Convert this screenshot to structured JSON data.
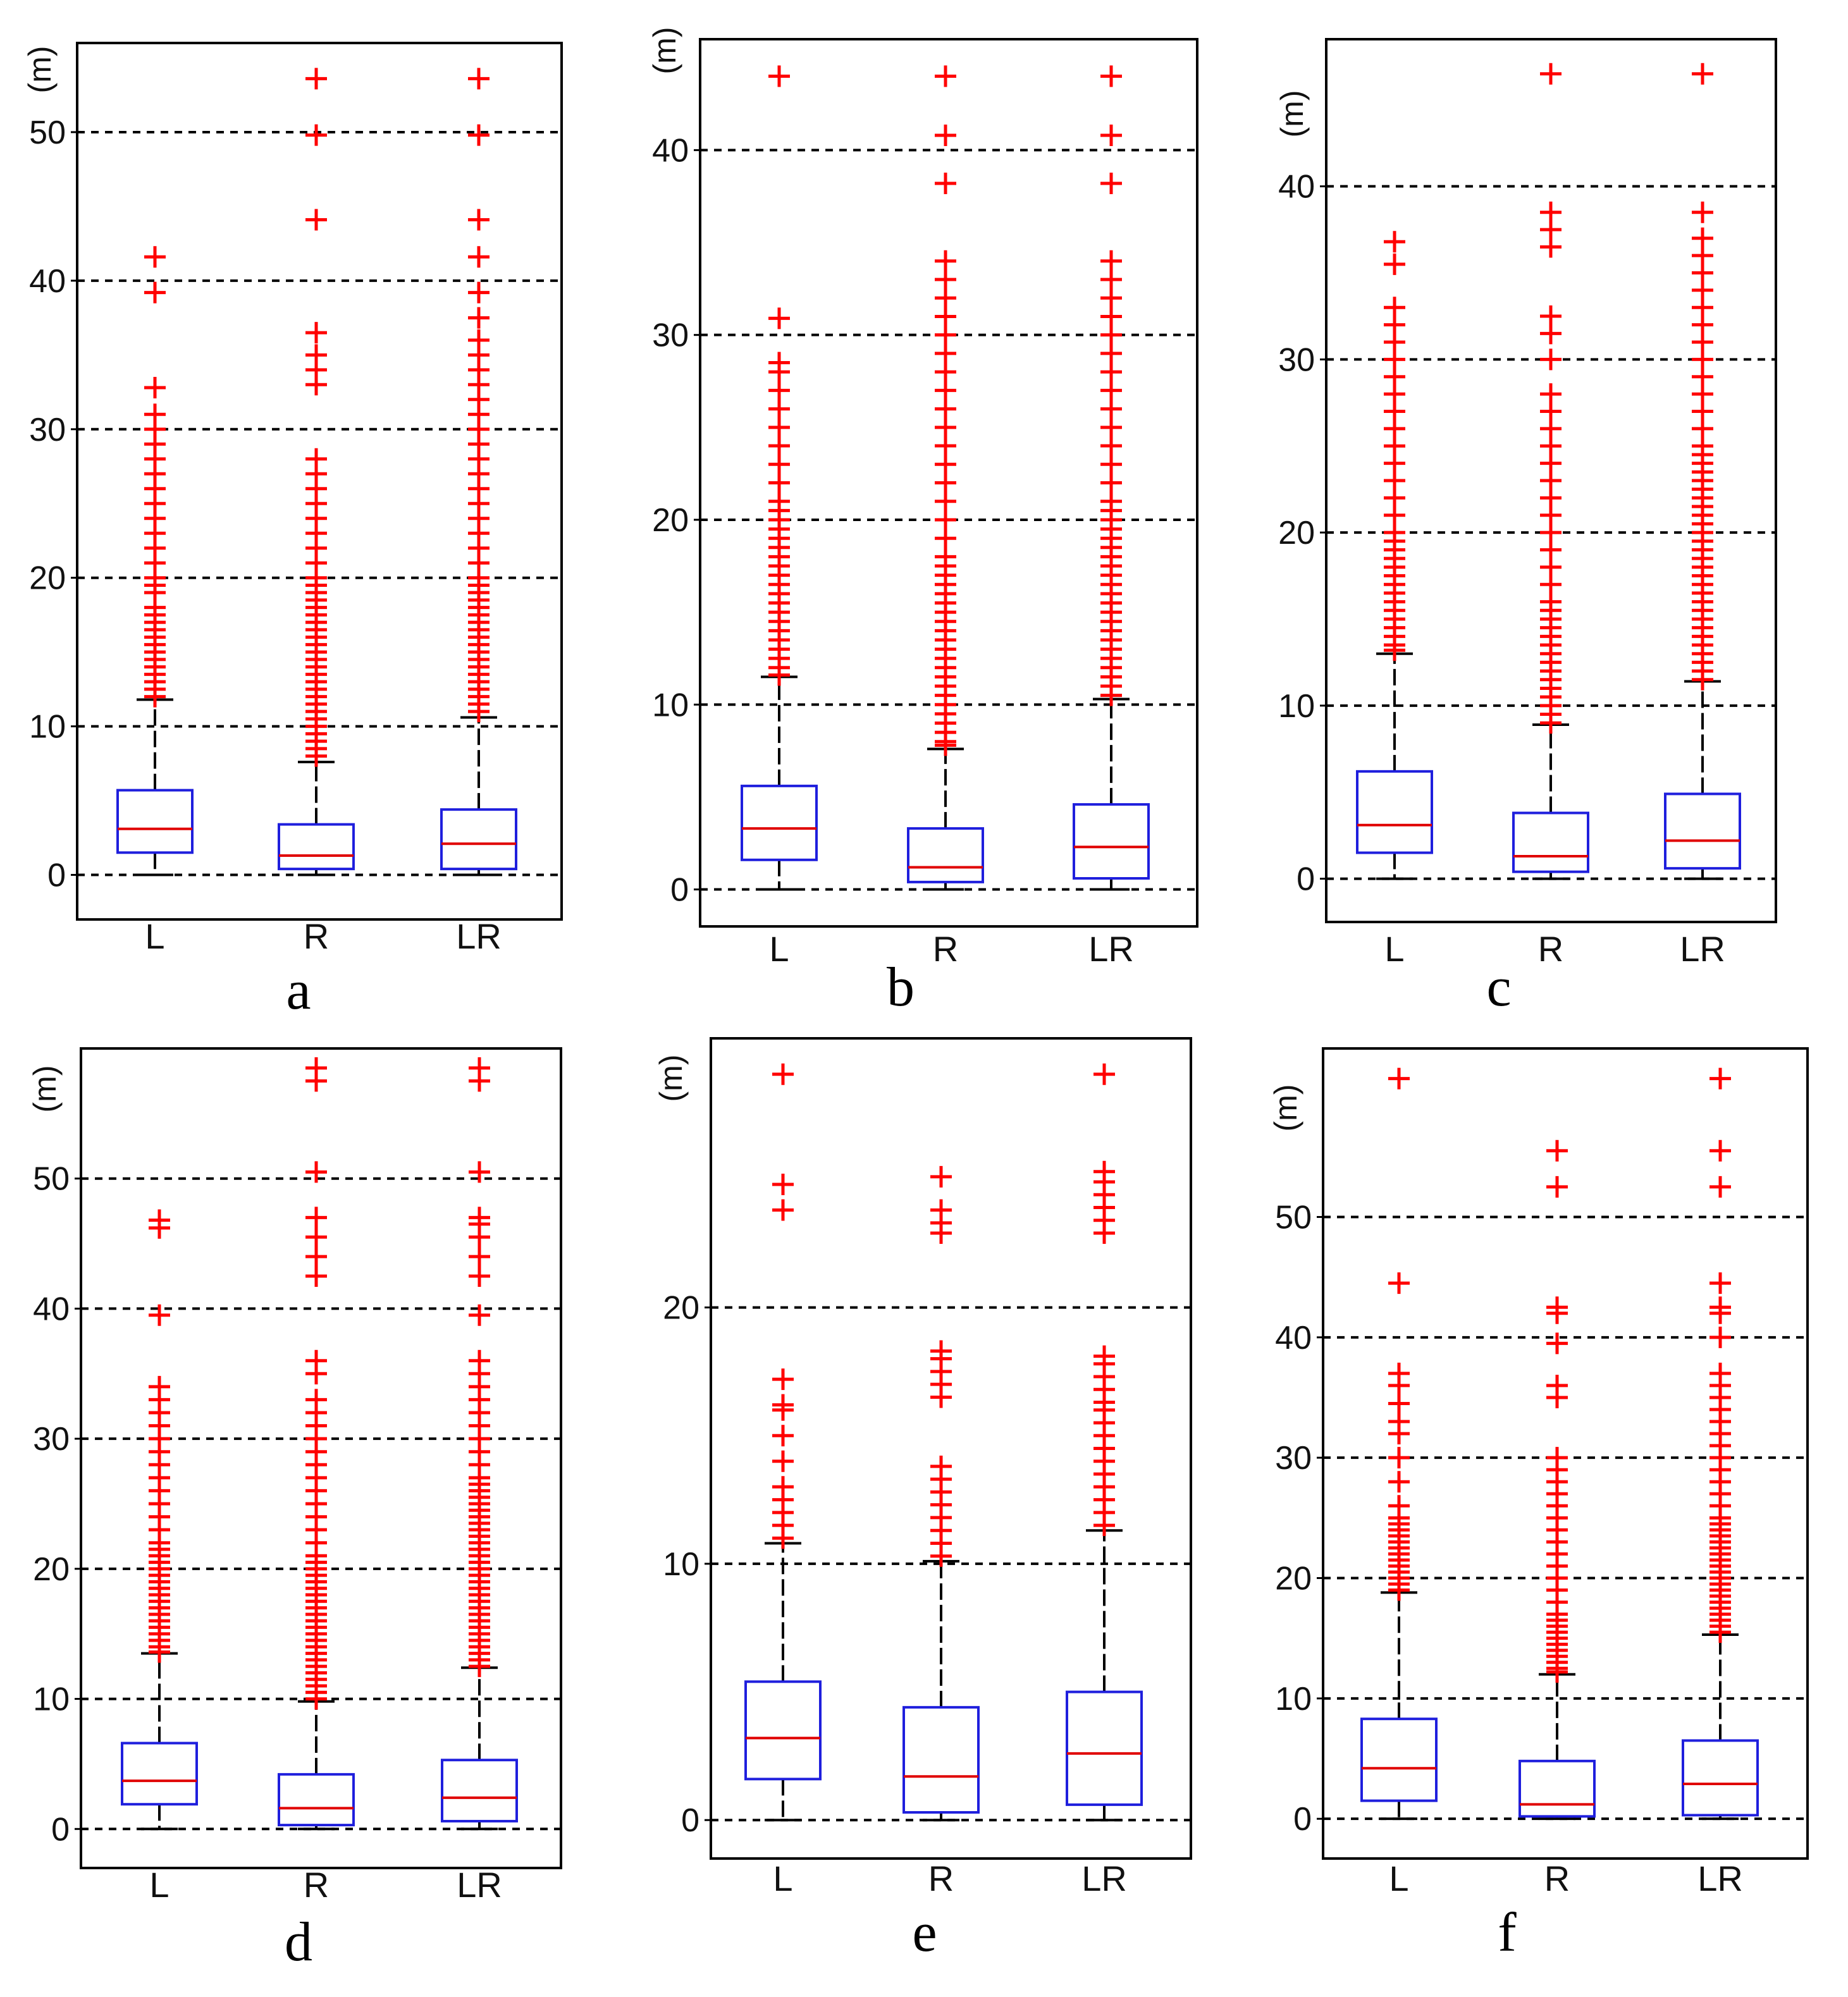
{
  "figure": {
    "title": ""
  },
  "chart_data": [
    {
      "panel": "a",
      "type": "boxplot",
      "title": "",
      "xlabel": "",
      "ylabel": "(m)",
      "categories": [
        "L",
        "R",
        "LR"
      ],
      "yticks": [
        0,
        10,
        20,
        30,
        40,
        50
      ],
      "ylim": [
        -3,
        56
      ],
      "grid": true,
      "boxes": [
        {
          "category": "L",
          "whisker_low": 0,
          "q1": 1.5,
          "median": 3.1,
          "q3": 5.7,
          "whisker_high": 11.8,
          "outliers": [
            12,
            12.5,
            13,
            13.5,
            14,
            14.5,
            15,
            15.5,
            16,
            16.5,
            17,
            17.5,
            18,
            19,
            19.5,
            20,
            21,
            22,
            23,
            24,
            25,
            26,
            27,
            28,
            29,
            30,
            31,
            32.8,
            39.2,
            41.6
          ]
        },
        {
          "category": "R",
          "whisker_low": 0,
          "q1": 0.4,
          "median": 1.3,
          "q3": 3.4,
          "whisker_high": 7.6,
          "outliers": [
            8,
            8.5,
            9,
            9.5,
            10,
            10.5,
            11,
            11.5,
            12,
            12.5,
            13,
            13.5,
            14,
            14.5,
            15,
            15.5,
            16,
            16.5,
            17,
            17.5,
            18,
            18.5,
            19,
            19.5,
            20,
            21,
            22,
            23,
            24,
            25,
            26,
            27,
            28,
            33,
            34,
            35,
            36.5,
            44.1,
            49.8,
            53.6
          ]
        },
        {
          "category": "LR",
          "whisker_low": 0,
          "q1": 0.4,
          "median": 2.1,
          "q3": 4.4,
          "whisker_high": 10.6,
          "outliers": [
            11,
            11.5,
            12,
            12.5,
            13,
            13.5,
            14,
            14.5,
            15,
            15.5,
            16,
            16.5,
            17,
            17.5,
            18,
            18.5,
            19,
            19.5,
            20,
            21,
            22,
            23,
            24,
            25,
            26,
            27,
            28,
            29,
            30,
            31,
            32,
            33,
            34,
            35,
            36,
            37.5,
            39.2,
            41.6,
            44.1,
            49.8,
            53.6
          ]
        }
      ]
    },
    {
      "panel": "b",
      "type": "boxplot",
      "title": "",
      "xlabel": "",
      "ylabel": "(m)",
      "categories": [
        "L",
        "R",
        "LR"
      ],
      "yticks": [
        0,
        10,
        20,
        30,
        40
      ],
      "ylim": [
        -2,
        46
      ],
      "grid": true,
      "boxes": [
        {
          "category": "L",
          "whisker_low": 0,
          "q1": 1.6,
          "median": 3.3,
          "q3": 5.6,
          "whisker_high": 11.5,
          "outliers": [
            11.6,
            12,
            12.5,
            13,
            13.5,
            14,
            14.5,
            15,
            15.5,
            16,
            16.5,
            17,
            17.5,
            18,
            18.5,
            19,
            19.5,
            20,
            20.5,
            21,
            22,
            23,
            24,
            25,
            26,
            27,
            28,
            28.5,
            30.9,
            44
          ]
        },
        {
          "category": "R",
          "whisker_low": 0,
          "q1": 0.4,
          "median": 1.2,
          "q3": 3.3,
          "whisker_high": 7.6,
          "outliers": [
            7.8,
            8,
            8.5,
            9,
            9.5,
            10,
            10.5,
            11,
            11.5,
            12,
            12.5,
            13,
            13.5,
            14,
            14.5,
            15,
            15.5,
            16,
            16.5,
            17,
            17.5,
            18,
            19,
            20,
            21,
            22,
            23,
            24,
            25,
            26,
            27,
            28,
            29,
            30,
            31,
            32,
            33,
            34,
            38.2,
            40.8,
            44
          ]
        },
        {
          "category": "LR",
          "whisker_low": 0,
          "q1": 0.6,
          "median": 2.3,
          "q3": 4.6,
          "whisker_high": 10.3,
          "outliers": [
            10.5,
            11,
            11.5,
            12,
            12.5,
            13,
            13.5,
            14,
            14.5,
            15,
            15.5,
            16,
            16.5,
            17,
            17.5,
            18,
            18.5,
            19,
            19.5,
            20,
            20.5,
            21,
            22,
            23,
            24,
            25,
            26,
            27,
            28,
            29,
            30,
            31,
            32,
            33,
            34,
            38.2,
            40.8,
            44
          ]
        }
      ]
    },
    {
      "panel": "c",
      "type": "boxplot",
      "title": "",
      "xlabel": "",
      "ylabel": "(m)",
      "categories": [
        "L",
        "R",
        "LR"
      ],
      "yticks": [
        0,
        10,
        20,
        30,
        40
      ],
      "ylim": [
        -2.5,
        48.5
      ],
      "grid": true,
      "boxes": [
        {
          "category": "L",
          "whisker_low": 0,
          "q1": 1.5,
          "median": 3.1,
          "q3": 6.2,
          "whisker_high": 13,
          "outliers": [
            13.2,
            13.5,
            14,
            14.5,
            15,
            15.5,
            16,
            16.5,
            17,
            17.5,
            18,
            18.5,
            19,
            19.5,
            20,
            21,
            22,
            23,
            24,
            25,
            26,
            27,
            28,
            29,
            30,
            31,
            32,
            33,
            35.5,
            36.8
          ]
        },
        {
          "category": "R",
          "whisker_low": 0,
          "q1": 0.4,
          "median": 1.3,
          "q3": 3.8,
          "whisker_high": 8.9,
          "outliers": [
            9,
            9.5,
            10,
            10.5,
            11,
            11.5,
            12,
            12.5,
            13,
            13.5,
            14,
            14.5,
            15,
            15.5,
            16,
            17,
            18,
            19,
            20,
            21,
            22,
            23,
            24,
            25,
            26,
            27,
            28,
            30,
            31.5,
            32.5,
            36.5,
            37.5,
            38.5,
            46.5
          ]
        },
        {
          "category": "LR",
          "whisker_low": 0,
          "q1": 0.6,
          "median": 2.2,
          "q3": 4.9,
          "whisker_high": 11.4,
          "outliers": [
            11.5,
            12,
            12.5,
            13,
            13.5,
            14,
            14.5,
            15,
            15.5,
            16,
            16.5,
            17,
            17.5,
            18,
            18.5,
            19,
            19.5,
            20,
            20.5,
            21,
            21.5,
            22,
            22.5,
            23,
            23.5,
            24,
            24.5,
            25,
            26,
            27,
            28,
            29,
            30,
            31,
            32,
            33,
            34,
            35,
            36,
            37,
            38.5,
            46.5
          ]
        }
      ]
    },
    {
      "panel": "d",
      "type": "boxplot",
      "title": "",
      "xlabel": "",
      "ylabel": "(m)",
      "categories": [
        "L",
        "R",
        "LR"
      ],
      "yticks": [
        0,
        10,
        20,
        30,
        40,
        50
      ],
      "ylim": [
        -3,
        60
      ],
      "grid": true,
      "boxes": [
        {
          "category": "L",
          "whisker_low": 0,
          "q1": 1.9,
          "median": 3.7,
          "q3": 6.6,
          "whisker_high": 13.5,
          "outliers": [
            13.6,
            14,
            14.5,
            15,
            15.5,
            16,
            16.5,
            17,
            17.5,
            18,
            18.5,
            19,
            19.5,
            20,
            20.5,
            21,
            21.5,
            22,
            23,
            24,
            25,
            26,
            27,
            28,
            29,
            30,
            31,
            32,
            33,
            34,
            39.5,
            46.2,
            46.8
          ]
        },
        {
          "category": "R",
          "whisker_low": 0,
          "q1": 0.3,
          "median": 1.6,
          "q3": 4.2,
          "whisker_high": 9.8,
          "outliers": [
            10,
            10.5,
            11,
            11.5,
            12,
            12.5,
            13,
            13.5,
            14,
            14.5,
            15,
            15.5,
            16,
            16.5,
            17,
            17.5,
            18,
            18.5,
            19,
            19.5,
            20,
            20.5,
            21,
            22,
            23,
            24,
            25,
            26,
            27,
            28,
            29,
            30,
            31,
            32,
            33,
            35,
            36,
            42.5,
            44,
            45.5,
            47,
            50.5,
            57.5,
            58.5
          ]
        },
        {
          "category": "LR",
          "whisker_low": 0,
          "q1": 0.6,
          "median": 2.4,
          "q3": 5.3,
          "whisker_high": 12.4,
          "outliers": [
            12.5,
            13,
            13.5,
            14,
            14.5,
            15,
            15.5,
            16,
            16.5,
            17,
            17.5,
            18,
            18.5,
            19,
            19.5,
            20,
            20.5,
            21,
            21.5,
            22,
            22.5,
            23,
            23.5,
            24,
            24.5,
            25,
            25.5,
            26,
            26.5,
            27,
            28,
            29,
            30,
            31,
            32,
            33,
            34,
            35,
            36,
            39.5,
            42.5,
            44,
            45.5,
            46.5,
            47,
            50.5,
            57.5,
            58.5
          ]
        }
      ]
    },
    {
      "panel": "e",
      "type": "boxplot",
      "title": "",
      "xlabel": "",
      "ylabel": "(m)",
      "categories": [
        "L",
        "R",
        "LR"
      ],
      "yticks": [
        0,
        10,
        20
      ],
      "ylim": [
        -1.5,
        30.5
      ],
      "grid": true,
      "boxes": [
        {
          "category": "L",
          "whisker_low": 0,
          "q1": 1.6,
          "median": 3.2,
          "q3": 5.4,
          "whisker_high": 10.8,
          "outliers": [
            11,
            11.5,
            12,
            12.5,
            13,
            14,
            15,
            16,
            16.2,
            17.2,
            23.8,
            24.8,
            29.1
          ]
        },
        {
          "category": "R",
          "whisker_low": 0,
          "q1": 0.3,
          "median": 1.7,
          "q3": 4.4,
          "whisker_high": 10.1,
          "outliers": [
            10.3,
            10.8,
            11.3,
            11.8,
            12.3,
            12.8,
            13.3,
            13.8,
            16.5,
            17,
            17.5,
            18,
            18.3,
            22.9,
            23.3,
            23.8,
            25.1
          ]
        },
        {
          "category": "LR",
          "whisker_low": 0,
          "q1": 0.6,
          "median": 2.6,
          "q3": 5,
          "whisker_high": 11.3,
          "outliers": [
            11.5,
            12,
            12.5,
            13,
            13.5,
            14,
            14.5,
            15,
            15.5,
            16,
            16.3,
            16.8,
            17.3,
            17.8,
            18.1,
            22.9,
            23.4,
            23.9,
            24.4,
            24.9,
            25.3,
            29.1
          ]
        }
      ]
    },
    {
      "panel": "f",
      "type": "boxplot",
      "title": "",
      "xlabel": "",
      "ylabel": "(m)",
      "categories": [
        "L",
        "R",
        "LR"
      ],
      "yticks": [
        0,
        10,
        20,
        30,
        40,
        50
      ],
      "ylim": [
        -3.3,
        64
      ],
      "grid": true,
      "boxes": [
        {
          "category": "L",
          "whisker_low": 0,
          "q1": 1.5,
          "median": 4.2,
          "q3": 8.3,
          "whisker_high": 18.8,
          "outliers": [
            19,
            19.5,
            20,
            20.5,
            21,
            21.5,
            22,
            22.5,
            23,
            23.5,
            24,
            24.5,
            25,
            26,
            28,
            30,
            32,
            33,
            34.5,
            36,
            37,
            44.5,
            61.5
          ]
        },
        {
          "category": "R",
          "whisker_low": 0,
          "q1": 0.2,
          "median": 1.2,
          "q3": 4.8,
          "whisker_high": 12,
          "outliers": [
            12.2,
            12.5,
            13,
            13.5,
            14,
            14.5,
            15,
            15.5,
            16,
            16.5,
            17,
            18,
            19,
            20,
            21,
            22,
            23,
            24,
            25,
            26,
            27,
            28,
            29,
            30,
            35,
            36,
            39.5,
            42,
            42.5,
            52.5,
            55.5
          ]
        },
        {
          "category": "LR",
          "whisker_low": 0,
          "q1": 0.3,
          "median": 2.9,
          "q3": 6.5,
          "whisker_high": 15.3,
          "outliers": [
            15.5,
            16,
            16.5,
            17,
            17.5,
            18,
            18.5,
            19,
            19.5,
            20,
            20.5,
            21,
            21.5,
            22,
            22.5,
            23,
            23.5,
            24,
            24.5,
            25,
            26,
            27,
            28,
            29,
            30,
            31,
            32,
            33,
            34,
            35,
            36,
            37,
            40,
            42,
            42.5,
            44.5,
            52.5,
            55.5,
            61.5
          ]
        }
      ]
    }
  ]
}
